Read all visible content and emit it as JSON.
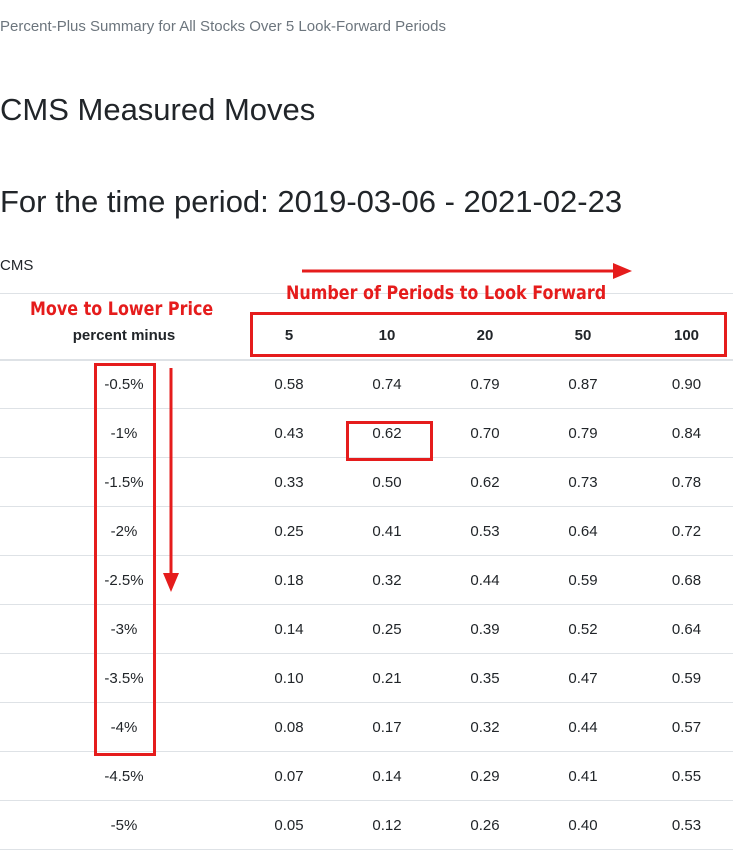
{
  "breadcrumb": "Percent-Plus Summary for All Stocks Over 5 Look-Forward Periods",
  "title": "CMS Measured Moves",
  "period_heading": "For the time period: 2019-03-06 - 2021-02-23",
  "ticker": "CMS",
  "annotations": {
    "columns_note": "Number of Periods to Look Forward",
    "rows_note": "Move to Lower Price",
    "color": "#e51c1c"
  },
  "table": {
    "corner_header": "percent minus",
    "columns": [
      "5",
      "10",
      "20",
      "50",
      "100"
    ],
    "rows": [
      {
        "label": "-0.5%",
        "values": [
          "0.58",
          "0.74",
          "0.79",
          "0.87",
          "0.90"
        ]
      },
      {
        "label": "-1%",
        "values": [
          "0.43",
          "0.62",
          "0.70",
          "0.79",
          "0.84"
        ]
      },
      {
        "label": "-1.5%",
        "values": [
          "0.33",
          "0.50",
          "0.62",
          "0.73",
          "0.78"
        ]
      },
      {
        "label": "-2%",
        "values": [
          "0.25",
          "0.41",
          "0.53",
          "0.64",
          "0.72"
        ]
      },
      {
        "label": "-2.5%",
        "values": [
          "0.18",
          "0.32",
          "0.44",
          "0.59",
          "0.68"
        ]
      },
      {
        "label": "-3%",
        "values": [
          "0.14",
          "0.25",
          "0.39",
          "0.52",
          "0.64"
        ]
      },
      {
        "label": "-3.5%",
        "values": [
          "0.10",
          "0.21",
          "0.35",
          "0.47",
          "0.59"
        ]
      },
      {
        "label": "-4%",
        "values": [
          "0.08",
          "0.17",
          "0.32",
          "0.44",
          "0.57"
        ]
      },
      {
        "label": "-4.5%",
        "values": [
          "0.07",
          "0.14",
          "0.29",
          "0.41",
          "0.55"
        ]
      },
      {
        "label": "-5%",
        "values": [
          "0.05",
          "0.12",
          "0.26",
          "0.40",
          "0.53"
        ]
      }
    ]
  }
}
